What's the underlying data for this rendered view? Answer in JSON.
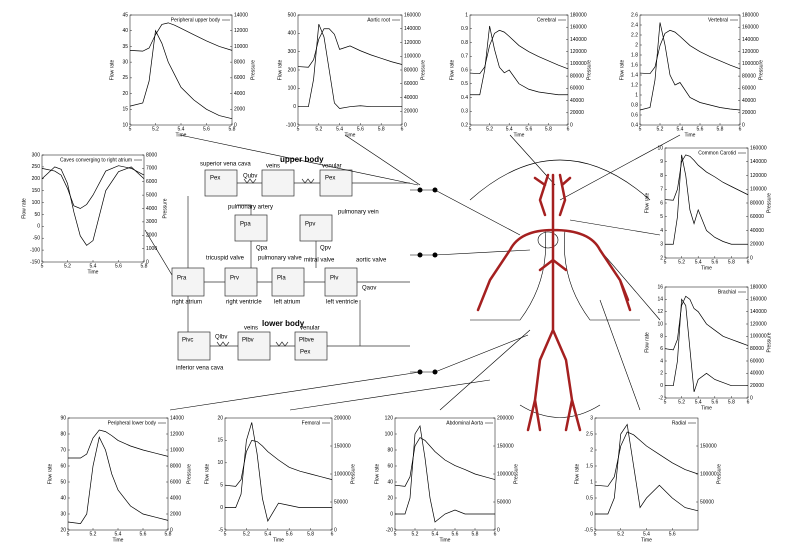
{
  "chart_data": [
    {
      "type": "line",
      "title": "Peripheral upper body",
      "xlabel": "Time",
      "ylabel": "Flow rate",
      "y2label": "Pressure",
      "xlim": [
        5,
        5.8
      ],
      "xticks": [
        5,
        5.2,
        5.4,
        5.6,
        5.8
      ],
      "ylim": [
        10,
        45
      ],
      "yticks": [
        10,
        15,
        20,
        25,
        30,
        35,
        40,
        45
      ],
      "y2lim": [
        0,
        14000
      ],
      "y2ticks": [
        0,
        2000,
        4000,
        6000,
        8000,
        10000,
        12000,
        14000
      ],
      "x": [
        5,
        5.1,
        5.15,
        5.2,
        5.25,
        5.3,
        5.35,
        5.4,
        5.5,
        5.6,
        5.7,
        5.8
      ],
      "series": [
        {
          "color": "#000000",
          "values": [
            16,
            17,
            24,
            40,
            36,
            30,
            26,
            22,
            18,
            15,
            13,
            12
          ]
        },
        {
          "color": "#000000",
          "axis": "y2",
          "values": [
            9500,
            9400,
            9800,
            11500,
            12800,
            13000,
            12700,
            12300,
            11500,
            10700,
            10000,
            9500
          ]
        }
      ]
    },
    {
      "type": "line",
      "title": "Aortic root",
      "xlabel": "Time",
      "ylabel": "Flow rate",
      "y2label": "Pressure",
      "xlim": [
        5,
        6
      ],
      "xticks": [
        5,
        5.2,
        5.4,
        5.6,
        5.8,
        6
      ],
      "ylim": [
        -100,
        500
      ],
      "yticks": [
        -100,
        0,
        100,
        200,
        300,
        400,
        500
      ],
      "y2lim": [
        0,
        160000
      ],
      "y2ticks": [
        0,
        20000,
        40000,
        60000,
        80000,
        100000,
        120000,
        140000,
        160000
      ],
      "x": [
        5,
        5.1,
        5.15,
        5.2,
        5.25,
        5.3,
        5.35,
        5.4,
        5.5,
        5.6,
        5.7,
        5.8,
        5.9,
        6
      ],
      "series": [
        {
          "color": "#000000",
          "values": [
            0,
            0,
            150,
            450,
            380,
            200,
            20,
            -10,
            0,
            5,
            0,
            0,
            0,
            0
          ]
        },
        {
          "color": "#000000",
          "axis": "y2",
          "values": [
            85000,
            84000,
            95000,
            125000,
            140000,
            140000,
            132000,
            110000,
            115000,
            108000,
            102000,
            97000,
            92000,
            88000
          ]
        }
      ]
    },
    {
      "type": "line",
      "title": "Cerebral",
      "xlabel": "Time",
      "ylabel": "Flow rate",
      "y2label": "Pressure",
      "xlim": [
        5,
        6
      ],
      "xticks": [
        5,
        5.2,
        5.4,
        5.6,
        5.8,
        6
      ],
      "ylim": [
        0.2,
        1
      ],
      "yticks": [
        0.2,
        0.3,
        0.4,
        0.5,
        0.6,
        0.7,
        0.8,
        0.9,
        1
      ],
      "y2lim": [
        0,
        180000
      ],
      "y2ticks": [
        0,
        20000,
        40000,
        60000,
        80000,
        100000,
        120000,
        140000,
        160000,
        180000
      ],
      "x": [
        5,
        5.1,
        5.15,
        5.2,
        5.25,
        5.3,
        5.35,
        5.4,
        5.5,
        5.6,
        5.7,
        5.8,
        5.9,
        6
      ],
      "series": [
        {
          "color": "#000000",
          "values": [
            0.42,
            0.42,
            0.6,
            0.92,
            0.75,
            0.62,
            0.58,
            0.6,
            0.5,
            0.46,
            0.44,
            0.43,
            0.42,
            0.42
          ]
        },
        {
          "color": "#000000",
          "axis": "y2",
          "values": [
            85000,
            84000,
            95000,
            130000,
            150000,
            155000,
            152000,
            145000,
            130000,
            120000,
            112000,
            105000,
            98000,
            92000
          ]
        }
      ]
    },
    {
      "type": "line",
      "title": "Vertebral",
      "xlabel": "Time",
      "ylabel": "Flow rate",
      "y2label": "Pressure",
      "xlim": [
        5,
        6
      ],
      "xticks": [
        5,
        5.2,
        5.4,
        5.6,
        5.8,
        6
      ],
      "ylim": [
        0.4,
        2.6
      ],
      "yticks": [
        0.4,
        0.6,
        0.8,
        1,
        1.2,
        1.4,
        1.6,
        1.8,
        2,
        2.2,
        2.4,
        2.6
      ],
      "y2lim": [
        0,
        180000
      ],
      "y2ticks": [
        0,
        20000,
        40000,
        60000,
        80000,
        100000,
        120000,
        140000,
        160000,
        180000
      ],
      "x": [
        5,
        5.1,
        5.15,
        5.2,
        5.25,
        5.3,
        5.35,
        5.4,
        5.5,
        5.6,
        5.7,
        5.8,
        5.9,
        6
      ],
      "series": [
        {
          "color": "#000000",
          "values": [
            0.7,
            0.75,
            1.3,
            2.45,
            2,
            1.4,
            1.2,
            1.25,
            0.95,
            0.85,
            0.8,
            0.75,
            0.72,
            0.7
          ]
        },
        {
          "color": "#000000",
          "axis": "y2",
          "values": [
            85000,
            84000,
            95000,
            130000,
            150000,
            155000,
            152000,
            145000,
            130000,
            120000,
            112000,
            105000,
            98000,
            92000
          ]
        }
      ]
    },
    {
      "type": "line",
      "title": "Caves converging to right atrium",
      "xlabel": "Time",
      "ylabel": "Flow rate",
      "y2label": "Pressure",
      "xlim": [
        5,
        5.8
      ],
      "xticks": [
        5,
        5.2,
        5.4,
        5.6,
        5.8
      ],
      "ylim": [
        -150,
        300
      ],
      "yticks": [
        -150,
        -100,
        -50,
        0,
        50,
        100,
        150,
        200,
        250,
        300
      ],
      "y2lim": [
        0,
        8000
      ],
      "y2ticks": [
        0,
        1000,
        2000,
        3000,
        4000,
        5000,
        6000,
        7000,
        8000
      ],
      "x": [
        5,
        5.1,
        5.15,
        5.2,
        5.25,
        5.3,
        5.35,
        5.4,
        5.5,
        5.6,
        5.7,
        5.8
      ],
      "series": [
        {
          "color": "#000000",
          "values": [
            200,
            250,
            240,
            180,
            60,
            -40,
            -80,
            -60,
            150,
            230,
            250,
            200
          ]
        },
        {
          "color": "#000000",
          "axis": "y2",
          "values": [
            7000,
            6800,
            6500,
            5500,
            4200,
            4000,
            4300,
            5000,
            6800,
            7200,
            7000,
            6500
          ]
        }
      ]
    },
    {
      "type": "line",
      "title": "Common Carotid",
      "xlabel": "Time",
      "ylabel": "Flow rate",
      "y2label": "Pressure",
      "xlim": [
        5,
        6
      ],
      "xticks": [
        5,
        5.2,
        5.4,
        5.6,
        5.8,
        6
      ],
      "ylim": [
        2,
        10
      ],
      "yticks": [
        2,
        3,
        4,
        5,
        6,
        7,
        8,
        9,
        10
      ],
      "y2lim": [
        0,
        160000
      ],
      "y2ticks": [
        0,
        20000,
        40000,
        60000,
        80000,
        100000,
        120000,
        140000,
        160000
      ],
      "x": [
        5,
        5.1,
        5.15,
        5.2,
        5.25,
        5.3,
        5.35,
        5.4,
        5.5,
        5.6,
        5.7,
        5.8,
        5.9,
        6
      ],
      "series": [
        {
          "color": "#000000",
          "values": [
            3,
            3,
            5,
            9.5,
            8,
            5.5,
            4.5,
            5.5,
            4,
            3.5,
            3.2,
            3,
            3,
            3
          ]
        },
        {
          "color": "#000000",
          "axis": "y2",
          "values": [
            85000,
            84000,
            100000,
            140000,
            150000,
            148000,
            142000,
            135000,
            125000,
            118000,
            110000,
            104000,
            98000,
            92000
          ]
        }
      ]
    },
    {
      "type": "line",
      "title": "Brachial",
      "xlabel": "Time",
      "ylabel": "Flow rate",
      "y2label": "Pressure",
      "xlim": [
        5,
        6
      ],
      "xticks": [
        5,
        5.2,
        5.4,
        5.6,
        5.8,
        6
      ],
      "ylim": [
        -2,
        16
      ],
      "yticks": [
        -2,
        0,
        2,
        4,
        6,
        8,
        10,
        12,
        14,
        16
      ],
      "y2lim": [
        0,
        180000
      ],
      "y2ticks": [
        0,
        20000,
        40000,
        60000,
        80000,
        100000,
        120000,
        140000,
        160000,
        180000
      ],
      "x": [
        5,
        5.1,
        5.15,
        5.2,
        5.25,
        5.3,
        5.35,
        5.4,
        5.5,
        5.6,
        5.7,
        5.8,
        5.9,
        6
      ],
      "series": [
        {
          "color": "#000000",
          "values": [
            0,
            0,
            4,
            14,
            13,
            6,
            -1,
            1,
            2,
            1,
            0.5,
            0,
            0,
            0
          ]
        },
        {
          "color": "#000000",
          "axis": "y2",
          "values": [
            80000,
            78000,
            95000,
            150000,
            165000,
            160000,
            145000,
            140000,
            120000,
            110000,
            100000,
            95000,
            90000,
            85000
          ]
        }
      ]
    },
    {
      "type": "line",
      "title": "Peripheral lower body",
      "xlabel": "Time",
      "ylabel": "Flow rate",
      "y2label": "Pressure",
      "xlim": [
        5,
        5.8
      ],
      "xticks": [
        5,
        5.2,
        5.4,
        5.6,
        5.8
      ],
      "ylim": [
        20,
        90
      ],
      "yticks": [
        20,
        30,
        40,
        50,
        60,
        70,
        80,
        90
      ],
      "y2lim": [
        0,
        14000
      ],
      "y2ticks": [
        0,
        2000,
        4000,
        6000,
        8000,
        10000,
        12000,
        14000
      ],
      "x": [
        5,
        5.1,
        5.15,
        5.2,
        5.25,
        5.3,
        5.35,
        5.4,
        5.5,
        5.6,
        5.7,
        5.8
      ],
      "series": [
        {
          "color": "#000000",
          "values": [
            25,
            24,
            30,
            60,
            78,
            70,
            55,
            45,
            35,
            30,
            28,
            26
          ]
        },
        {
          "color": "#000000",
          "axis": "y2",
          "values": [
            9000,
            9000,
            9500,
            11500,
            12500,
            12300,
            11800,
            11200,
            10500,
            10000,
            9600,
            9200
          ]
        }
      ]
    },
    {
      "type": "line",
      "title": "Femoral",
      "xlabel": "Time",
      "ylabel": "Flow rate",
      "y2label": "Pressure",
      "xlim": [
        5,
        6
      ],
      "xticks": [
        5,
        5.2,
        5.4,
        5.6,
        5.8,
        6
      ],
      "ylim": [
        -5,
        20
      ],
      "yticks": [
        -5,
        0,
        5,
        10,
        15,
        20
      ],
      "y2lim": [
        0,
        200000
      ],
      "y2ticks": [
        0,
        50000,
        100000,
        150000,
        200000
      ],
      "x": [
        5,
        5.1,
        5.15,
        5.2,
        5.25,
        5.3,
        5.35,
        5.4,
        5.5,
        5.6,
        5.7,
        5.8,
        5.9,
        6
      ],
      "series": [
        {
          "color": "#000000",
          "values": [
            0,
            0,
            3,
            15,
            19,
            12,
            2,
            -3,
            1,
            0.5,
            0,
            0,
            0,
            0
          ]
        },
        {
          "color": "#000000",
          "axis": "y2",
          "values": [
            80000,
            78000,
            90000,
            140000,
            160000,
            158000,
            150000,
            140000,
            125000,
            112000,
            105000,
            100000,
            95000,
            90000
          ]
        }
      ]
    },
    {
      "type": "line",
      "title": "Abdominal Aorta",
      "xlabel": "Time",
      "ylabel": "Flow rate",
      "y2label": "Pressure",
      "xlim": [
        5,
        6
      ],
      "xticks": [
        5,
        5.2,
        5.4,
        5.6,
        5.8,
        6
      ],
      "ylim": [
        -20,
        120
      ],
      "yticks": [
        -20,
        0,
        20,
        40,
        60,
        80,
        100,
        120
      ],
      "y2lim": [
        0,
        200000
      ],
      "y2ticks": [
        0,
        50000,
        100000,
        150000,
        200000
      ],
      "x": [
        5,
        5.1,
        5.15,
        5.2,
        5.25,
        5.3,
        5.35,
        5.4,
        5.5,
        5.6,
        5.7,
        5.8,
        5.9,
        6
      ],
      "series": [
        {
          "color": "#000000",
          "values": [
            0,
            0,
            20,
            100,
            110,
            70,
            20,
            -10,
            0,
            5,
            0,
            0,
            0,
            0
          ]
        },
        {
          "color": "#000000",
          "axis": "y2",
          "values": [
            80000,
            78000,
            95000,
            150000,
            165000,
            160000,
            150000,
            140000,
            125000,
            115000,
            108000,
            100000,
            95000,
            90000
          ]
        }
      ]
    },
    {
      "type": "line",
      "title": "Radial",
      "xlabel": "Time",
      "ylabel": "Flow rate",
      "y2label": "Pressure",
      "xlim": [
        5,
        5.8
      ],
      "xticks": [
        5,
        5.2,
        5.4,
        5.6
      ],
      "ylim": [
        -0.5,
        3
      ],
      "yticks": [
        -0.5,
        0,
        0.5,
        1,
        1.5,
        2,
        2.5,
        3
      ],
      "y2lim": [
        0,
        200000
      ],
      "y2ticks": [
        50000,
        100000,
        150000
      ],
      "x": [
        5,
        5.1,
        5.15,
        5.2,
        5.25,
        5.3,
        5.35,
        5.4,
        5.5,
        5.6,
        5.7,
        5.8
      ],
      "series": [
        {
          "color": "#000000",
          "values": [
            0,
            0,
            0.5,
            2.5,
            2.8,
            1.5,
            0.2,
            0.5,
            0.9,
            0.5,
            0.2,
            0.1
          ]
        },
        {
          "color": "#000000",
          "axis": "y2",
          "values": [
            80000,
            78000,
            95000,
            150000,
            175000,
            170000,
            160000,
            150000,
            135000,
            120000,
            108000,
            100000
          ]
        }
      ]
    }
  ],
  "diagram": {
    "labels": [
      "upper body",
      "superior vena cava",
      "veins",
      "venular",
      "pulmonary artery",
      "pulmonary vein",
      "pulmonary valve",
      "tricuspid valve",
      "mitral valve",
      "aortic valve",
      "right atrium",
      "right ventricle",
      "left atrium",
      "left ventricle",
      "lower body",
      "inferior vena cava",
      "veins",
      "venular",
      "Pex",
      "Pex",
      "Pex",
      "Ppa",
      "Ppv",
      "Pra",
      "Prv",
      "Pla",
      "Plv",
      "Pivc",
      "Plbv",
      "Plbve",
      "Qubv",
      "Qlbv",
      "Qpa",
      "Qpv",
      "Qaov"
    ]
  }
}
